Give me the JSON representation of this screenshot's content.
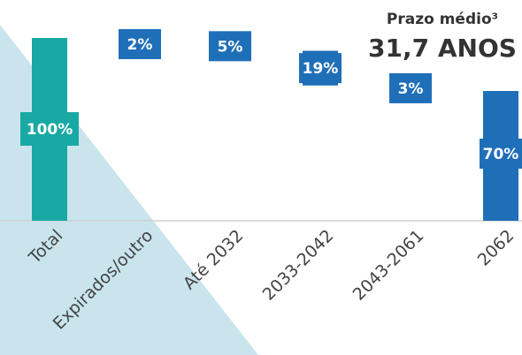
{
  "chart_data": {
    "type": "waterfall",
    "subtitle": "Prazo médio³",
    "title": "31,7 ANOS",
    "categories": [
      "Total",
      "Expirados/outro",
      "Até 2032",
      "2033-2042",
      "2043-2061",
      "2062"
    ],
    "values": [
      100,
      2,
      5,
      19,
      3,
      70
    ],
    "value_labels": [
      "100%",
      "2%",
      "5%",
      "19%",
      "3%",
      "70%"
    ],
    "colors": [
      "#19a9a4",
      "#1f6fb8",
      "#1f6fb8",
      "#1f6fb8",
      "#1f6fb8",
      "#1f6fb8"
    ],
    "ylim": [
      0,
      100
    ]
  }
}
